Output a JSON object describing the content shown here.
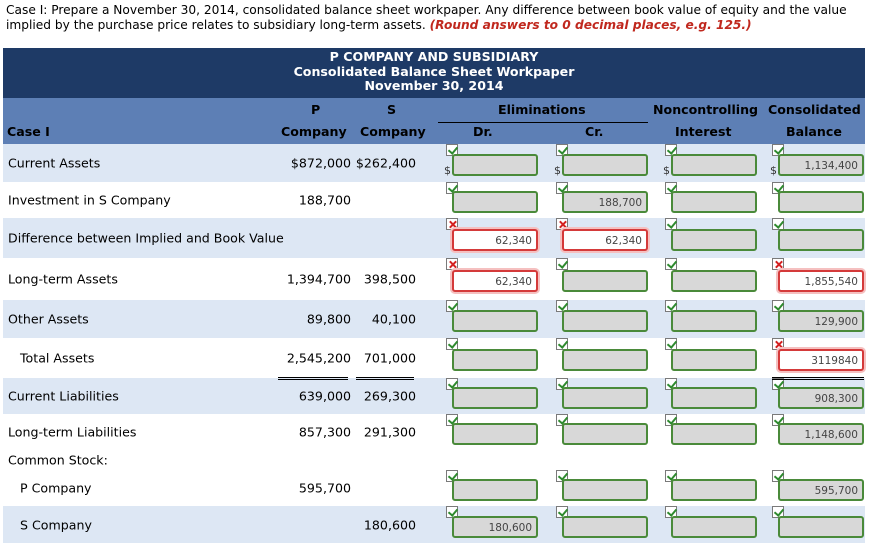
{
  "instructions": {
    "text": "Case I: Prepare a November 30, 2014, consolidated balance sheet workpaper. Any difference between book value of equity and the value implied by the purchase price relates to subsidiary long-term assets.",
    "note": "(Round answers to 0 decimal places, e.g. 125.)"
  },
  "title": {
    "line1": "P COMPANY AND SUBSIDIARY",
    "line2": "Consolidated Balance Sheet Workpaper",
    "line3": "November 30, 2014"
  },
  "headers": {
    "case": "Case I",
    "p_top": "P",
    "p_bottom": "Company",
    "s_top": "S",
    "s_bottom": "Company",
    "elim": "Eliminations",
    "dr": "Dr.",
    "cr": "Cr.",
    "nci_top": "Noncontrolling",
    "nci_bottom": "Interest",
    "cons_top": "Consolidated",
    "cons_bottom": "Balance"
  },
  "currency": "$",
  "rows": [
    {
      "label": "Current Assets",
      "p": "$872,000",
      "s": "$262,400",
      "dr": "",
      "cr": "",
      "nci": "",
      "cons": "1,134,400"
    },
    {
      "label": "Investment in S Company",
      "p": "188,700",
      "s": "",
      "dr": "",
      "cr": "188,700",
      "nci": "",
      "cons": ""
    },
    {
      "label": "Difference between Implied and Book Value",
      "p": "",
      "s": "",
      "dr": "62,340",
      "cr": "62,340",
      "nci": "",
      "cons": ""
    },
    {
      "label": "Long-term Assets",
      "p": "1,394,700",
      "s": "398,500",
      "dr": "62,340",
      "cr": "",
      "nci": "",
      "cons": "1,855,540"
    },
    {
      "label": "Other Assets",
      "p": "89,800",
      "s": "40,100",
      "dr": "",
      "cr": "",
      "nci": "",
      "cons": "129,900"
    },
    {
      "label": "Total Assets",
      "p": "2,545,200",
      "s": "701,000",
      "dr": "",
      "cr": "",
      "nci": "",
      "cons": "3119840"
    },
    {
      "label": "Current Liabilities",
      "p": "639,000",
      "s": "269,300",
      "dr": "",
      "cr": "",
      "nci": "",
      "cons": "908,300"
    },
    {
      "label": "Long-term Liabilities",
      "p": "857,300",
      "s": "291,300",
      "dr": "",
      "cr": "",
      "nci": "",
      "cons": "1,148,600"
    },
    {
      "label": "Common Stock:",
      "p": "",
      "s": "",
      "dr": "",
      "cr": "",
      "nci": "",
      "cons": ""
    },
    {
      "label": "P Company",
      "p": "595,700",
      "s": "",
      "dr": "",
      "cr": "",
      "nci": "",
      "cons": "595,700"
    },
    {
      "label": "S Company",
      "p": "",
      "s": "180,600",
      "dr": "180,600",
      "cr": "",
      "nci": "",
      "cons": ""
    }
  ]
}
